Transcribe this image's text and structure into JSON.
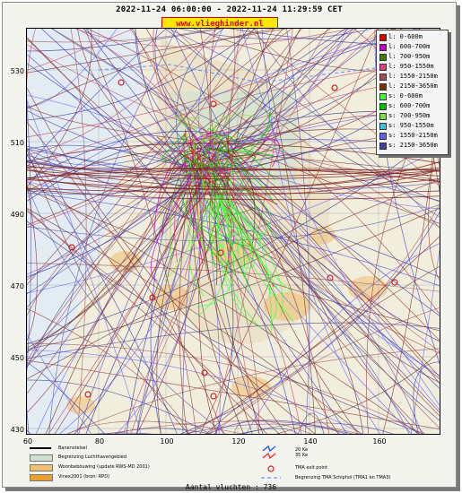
{
  "header": {
    "time_range": "2022-11-24 06:00:00 - 2022-11-24 11:29:59 CET",
    "site_badge": "www.vlieghinder.nl"
  },
  "axes": {
    "y_ticks": [
      "530",
      "510",
      "490",
      "470",
      "450",
      "430"
    ],
    "x_ticks": [
      "60",
      "80",
      "100",
      "120",
      "140",
      "160"
    ]
  },
  "legend": {
    "items": [
      {
        "label": "l: 0-600m",
        "color": "#e00000"
      },
      {
        "label": "l: 600-700m",
        "color": "#c000c0"
      },
      {
        "label": "l: 700-950m",
        "color": "#408000"
      },
      {
        "label": "l: 950-1550m",
        "color": "#e04080"
      },
      {
        "label": "l: 1550-2150m",
        "color": "#a05050"
      },
      {
        "label": "l: 2150-3650m",
        "color": "#803000"
      },
      {
        "label": "s: 0-600m",
        "color": "#40ff40"
      },
      {
        "label": "s: 600-700m",
        "color": "#00c000"
      },
      {
        "label": "s: 700-950m",
        "color": "#80e040"
      },
      {
        "label": "s: 950-1550m",
        "color": "#40c0e0"
      },
      {
        "label": "s: 1550-2150m",
        "color": "#6060ff"
      },
      {
        "label": "s: 2150-3650m",
        "color": "#4040a0"
      }
    ]
  },
  "map_legend": {
    "runway": "Banenstelsel",
    "airport_boundary": "Begrenzing Luchthavengebied",
    "housing": "Woonbebouwing (update RWS-MD 2001)",
    "vinex": "Vinex2001 (bron: RPD)",
    "tma_exit": "TMA exit point",
    "tma_boundary": "Begrenzing TMA Schiphol  (TMA1 en TMA3)",
    "noise_20": "20 Ke",
    "noise_35": "35 Ke"
  },
  "flight_count": "Aantal vluchten : 736",
  "colors": {
    "land_track": "#802020",
    "start_track": "#4040a0",
    "badge_bg": "#ffe800",
    "badge_text": "#d60000"
  }
}
